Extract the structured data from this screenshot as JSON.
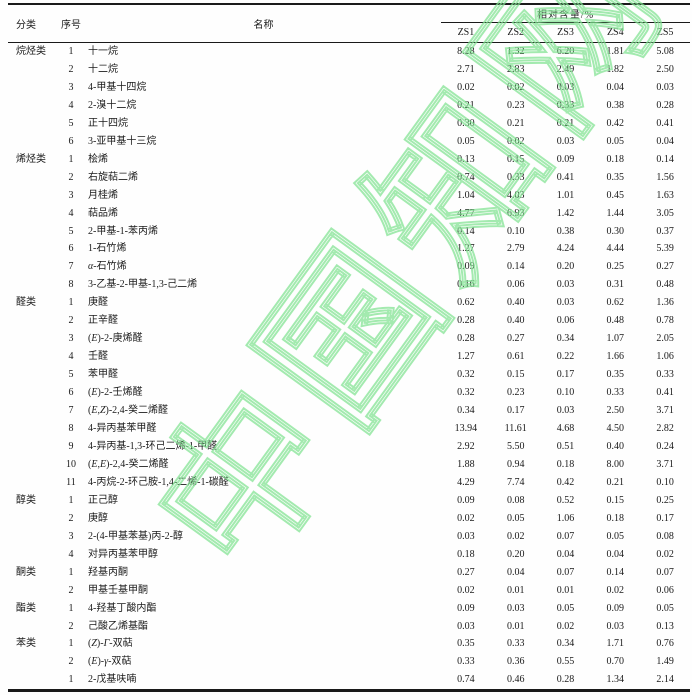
{
  "watermark": {
    "text": "中国知网",
    "color": "#80e290"
  },
  "table": {
    "headers": {
      "category": "分类",
      "index": "序号",
      "name": "名称",
      "group": "相对含量/%",
      "samples": [
        "ZS1",
        "ZS2",
        "ZS3",
        "ZS4",
        "ZS5"
      ]
    },
    "rows": [
      {
        "category": "烷烃类",
        "index": "1",
        "name": "十一烷",
        "values": [
          "8.28",
          "1.32",
          "6.20",
          "1.81",
          "5.08"
        ]
      },
      {
        "category": "",
        "index": "2",
        "name": "十二烷",
        "values": [
          "2.71",
          "2.83",
          "2.49",
          "1.82",
          "2.50"
        ]
      },
      {
        "category": "",
        "index": "3",
        "name": "4-甲基十四烷",
        "values": [
          "0.02",
          "0.02",
          "0.03",
          "0.04",
          "0.03"
        ]
      },
      {
        "category": "",
        "index": "4",
        "name": "2-溴十二烷",
        "values": [
          "0.21",
          "0.23",
          "0.33",
          "0.38",
          "0.28"
        ]
      },
      {
        "category": "",
        "index": "5",
        "name": "正十四烷",
        "values": [
          "0.30",
          "0.21",
          "0.21",
          "0.42",
          "0.41"
        ]
      },
      {
        "category": "",
        "index": "6",
        "name": "3-亚甲基十三烷",
        "values": [
          "0.05",
          "0.02",
          "0.03",
          "0.05",
          "0.04"
        ]
      },
      {
        "category": "烯烃类",
        "index": "1",
        "name": "桧烯",
        "values": [
          "0.13",
          "0.15",
          "0.09",
          "0.18",
          "0.14"
        ]
      },
      {
        "category": "",
        "index": "2",
        "name": "右旋萜二烯",
        "values": [
          "0.74",
          "0.33",
          "0.41",
          "0.35",
          "1.56"
        ]
      },
      {
        "category": "",
        "index": "3",
        "name": "月桂烯",
        "values": [
          "1.04",
          "4.03",
          "1.01",
          "0.45",
          "1.63"
        ]
      },
      {
        "category": "",
        "index": "4",
        "name": "萜品烯",
        "values": [
          "4.77",
          "6.93",
          "1.42",
          "1.44",
          "3.05"
        ]
      },
      {
        "category": "",
        "index": "5",
        "name": "2-甲基-1-苯丙烯",
        "values": [
          "0.14",
          "0.10",
          "0.38",
          "0.30",
          "0.37"
        ]
      },
      {
        "category": "",
        "index": "6",
        "name": "1-石竹烯",
        "values": [
          "1.27",
          "2.79",
          "4.24",
          "4.44",
          "5.39"
        ]
      },
      {
        "category": "",
        "index": "7",
        "name": "α-石竹烯",
        "values": [
          "0.09",
          "0.14",
          "0.20",
          "0.25",
          "0.27"
        ]
      },
      {
        "category": "",
        "index": "8",
        "name": "3-乙基-2-甲基-1,3-己二烯",
        "values": [
          "0.16",
          "0.06",
          "0.03",
          "0.31",
          "0.48"
        ]
      },
      {
        "category": "醛类",
        "index": "1",
        "name": "庚醛",
        "values": [
          "0.62",
          "0.40",
          "0.03",
          "0.62",
          "1.36"
        ]
      },
      {
        "category": "",
        "index": "2",
        "name": "正辛醛",
        "values": [
          "0.28",
          "0.40",
          "0.06",
          "0.48",
          "0.78"
        ]
      },
      {
        "category": "",
        "index": "3",
        "name": "(E)-2-庚烯醛",
        "values": [
          "0.28",
          "0.27",
          "0.34",
          "1.07",
          "2.05"
        ]
      },
      {
        "category": "",
        "index": "4",
        "name": "壬醛",
        "values": [
          "1.27",
          "0.61",
          "0.22",
          "1.66",
          "1.06"
        ]
      },
      {
        "category": "",
        "index": "5",
        "name": "苯甲醛",
        "values": [
          "0.32",
          "0.15",
          "0.17",
          "0.35",
          "0.33"
        ]
      },
      {
        "category": "",
        "index": "6",
        "name": "(E)-2-壬烯醛",
        "values": [
          "0.32",
          "0.23",
          "0.10",
          "0.33",
          "0.41"
        ]
      },
      {
        "category": "",
        "index": "7",
        "name": "(E,Z)-2,4-癸二烯醛",
        "values": [
          "0.34",
          "0.17",
          "0.03",
          "2.50",
          "3.71"
        ]
      },
      {
        "category": "",
        "index": "8",
        "name": "4-异丙基苯甲醛",
        "values": [
          "13.94",
          "11.61",
          "4.68",
          "4.50",
          "2.82"
        ]
      },
      {
        "category": "",
        "index": "9",
        "name": "4-异丙基-1,3-环己二烯-1-甲醛",
        "values": [
          "2.92",
          "5.50",
          "0.51",
          "0.40",
          "0.24"
        ]
      },
      {
        "category": "",
        "index": "10",
        "name": "(E,E)-2,4-癸二烯醛",
        "values": [
          "1.88",
          "0.94",
          "0.18",
          "8.00",
          "3.71"
        ]
      },
      {
        "category": "",
        "index": "11",
        "name": "4-丙烷-2-环己胺-1,4-二烯-1-碳醛",
        "values": [
          "4.29",
          "7.74",
          "0.42",
          "0.21",
          "0.10"
        ]
      },
      {
        "category": "醇类",
        "index": "1",
        "name": "正己醇",
        "values": [
          "0.09",
          "0.08",
          "0.52",
          "0.15",
          "0.25"
        ]
      },
      {
        "category": "",
        "index": "2",
        "name": "庚醇",
        "values": [
          "0.02",
          "0.05",
          "1.06",
          "0.18",
          "0.17"
        ]
      },
      {
        "category": "",
        "index": "3",
        "name": "2-(4-甲基苯基)丙-2-醇",
        "values": [
          "0.03",
          "0.02",
          "0.07",
          "0.05",
          "0.08"
        ]
      },
      {
        "category": "",
        "index": "4",
        "name": "对异丙基苯甲醇",
        "values": [
          "0.18",
          "0.20",
          "0.04",
          "0.04",
          "0.02"
        ]
      },
      {
        "category": "酮类",
        "index": "1",
        "name": "羟基丙酮",
        "values": [
          "0.27",
          "0.04",
          "0.07",
          "0.14",
          "0.07"
        ]
      },
      {
        "category": "",
        "index": "2",
        "name": "甲基壬基甲酮",
        "values": [
          "0.02",
          "0.01",
          "0.01",
          "0.02",
          "0.06"
        ]
      },
      {
        "category": "酯类",
        "index": "1",
        "name": "4-羟基丁酸内酯",
        "values": [
          "0.09",
          "0.03",
          "0.05",
          "0.09",
          "0.05"
        ]
      },
      {
        "category": "",
        "index": "2",
        "name": "己酸乙烯基酯",
        "values": [
          "0.03",
          "0.01",
          "0.02",
          "0.03",
          "0.13"
        ]
      },
      {
        "category": "苯类",
        "index": "1",
        "name": "(Z)-Γ-双萜",
        "values": [
          "0.35",
          "0.33",
          "0.34",
          "1.71",
          "0.76"
        ]
      },
      {
        "category": "",
        "index": "2",
        "name": "(E)-γ-双萜",
        "values": [
          "0.33",
          "0.36",
          "0.55",
          "0.70",
          "1.49"
        ]
      },
      {
        "category": "",
        "index": "1",
        "name": "2-戊基呋喃",
        "values": [
          "0.74",
          "0.46",
          "0.28",
          "1.34",
          "2.14"
        ]
      }
    ]
  }
}
